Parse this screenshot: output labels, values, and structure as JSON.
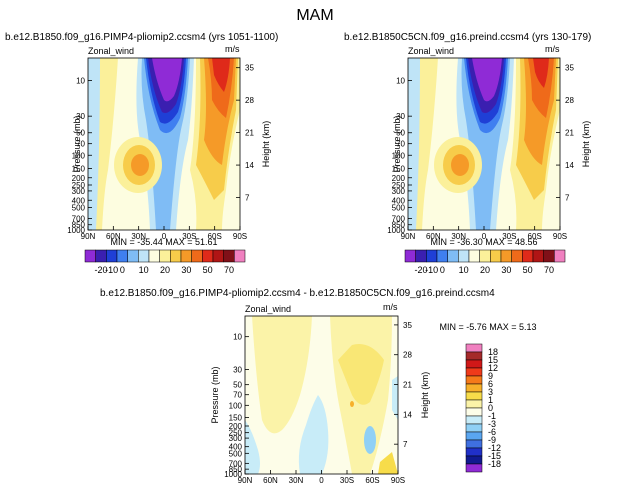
{
  "figure": {
    "title": "MAM"
  },
  "chart_data": [
    {
      "type": "heatmap",
      "title": "b.e12.B1850.f09_g16.PIMP4-pliomip2.ccsm4 (yrs 1051-1100)",
      "variable": "Zonal_wind",
      "units": "m/s",
      "ylabel": "Pressure (mb)",
      "y2label": "Height (km)",
      "xticks": [
        "90N",
        "60N",
        "30N",
        "0",
        "30S",
        "60S",
        "90S"
      ],
      "yticks": [
        "10",
        "30",
        "50",
        "70",
        "100",
        "150",
        "200",
        "250",
        "300",
        "400",
        "500",
        "700",
        "850",
        "1000"
      ],
      "y2ticks": [
        "35",
        "28",
        "21",
        "14",
        "7"
      ],
      "stats": "MIN = -35.44   MAX = 51.61",
      "min": -35.44,
      "max": 51.61,
      "colorbar_labels": [
        "-20",
        "-10",
        "0",
        "10",
        "20",
        "30",
        "50",
        "70"
      ],
      "features": [
        {
          "lat": -5,
          "p": 12,
          "value": -30
        },
        {
          "lat": -50,
          "p": 10,
          "value": 45
        },
        {
          "lat": 30,
          "p": 200,
          "value": 25
        },
        {
          "lat": -38,
          "p": 250,
          "value": 28
        }
      ]
    },
    {
      "type": "heatmap",
      "title": "b.e12.B1850C5CN.f09_g16.preind.ccsm4 (yrs 130-179)",
      "variable": "Zonal_wind",
      "units": "m/s",
      "ylabel": "Pressure (mb)",
      "y2label": "Height (km)",
      "xticks": [
        "90N",
        "60N",
        "30N",
        "0",
        "30S",
        "60S",
        "90S"
      ],
      "yticks": [
        "10",
        "30",
        "50",
        "70",
        "100",
        "150",
        "200",
        "250",
        "300",
        "400",
        "500",
        "700",
        "850",
        "1000"
      ],
      "y2ticks": [
        "35",
        "28",
        "21",
        "14",
        "7"
      ],
      "stats": "MIN = -36.30   MAX = 48.56",
      "min": -36.3,
      "max": 48.56,
      "colorbar_labels": [
        "-20",
        "-10",
        "0",
        "10",
        "20",
        "30",
        "50",
        "70"
      ],
      "features": [
        {
          "lat": -5,
          "p": 12,
          "value": -30
        },
        {
          "lat": -50,
          "p": 10,
          "value": 42
        },
        {
          "lat": 30,
          "p": 200,
          "value": 25
        },
        {
          "lat": -38,
          "p": 250,
          "value": 26
        }
      ]
    },
    {
      "type": "heatmap",
      "title": "b.e12.B1850.f09_g16.PIMP4-pliomip2.ccsm4 - b.e12.B1850C5CN.f09_g16.preind.ccsm4",
      "variable": "Zonal_wind",
      "units": "m/s",
      "ylabel": "Pressure (mb)",
      "y2label": "Height (km)",
      "xticks": [
        "90N",
        "60N",
        "30N",
        "0",
        "30S",
        "60S",
        "90S"
      ],
      "yticks": [
        "10",
        "30",
        "50",
        "70",
        "100",
        "150",
        "200",
        "250",
        "300",
        "400",
        "500",
        "700",
        "850",
        "1000"
      ],
      "y2ticks": [
        "35",
        "28",
        "21",
        "14",
        "7"
      ],
      "stats": "MIN = -5.76   MAX = 5.13",
      "min": -5.76,
      "max": 5.13,
      "colorbar_labels": [
        "18",
        "15",
        "12",
        "9",
        "6",
        "3",
        "1",
        "0",
        "-1",
        "-3",
        "-6",
        "-9",
        "-12",
        "-15",
        "-18"
      ]
    }
  ],
  "colors": {
    "full_scale": [
      "#8f2bd6",
      "#3a1fb0",
      "#1f3fd6",
      "#3f7ff0",
      "#7fbcf5",
      "#bfe4f7",
      "#fdfde0",
      "#fbf09a",
      "#f7cc4a",
      "#f59a28",
      "#ef6a1a",
      "#df2a1a",
      "#b01515",
      "#801018",
      "#f080c0"
    ],
    "diff_scale": [
      "#f080c0",
      "#a52a2a",
      "#d01818",
      "#ef3a1a",
      "#f57a1a",
      "#f7b02a",
      "#f7dc4a",
      "#fbf3a8",
      "#fdfde8",
      "#c8ecf8",
      "#90d0f5",
      "#5aa6f0",
      "#3f6fe0",
      "#2030c8",
      "#101a90",
      "#8f2bd6"
    ]
  }
}
